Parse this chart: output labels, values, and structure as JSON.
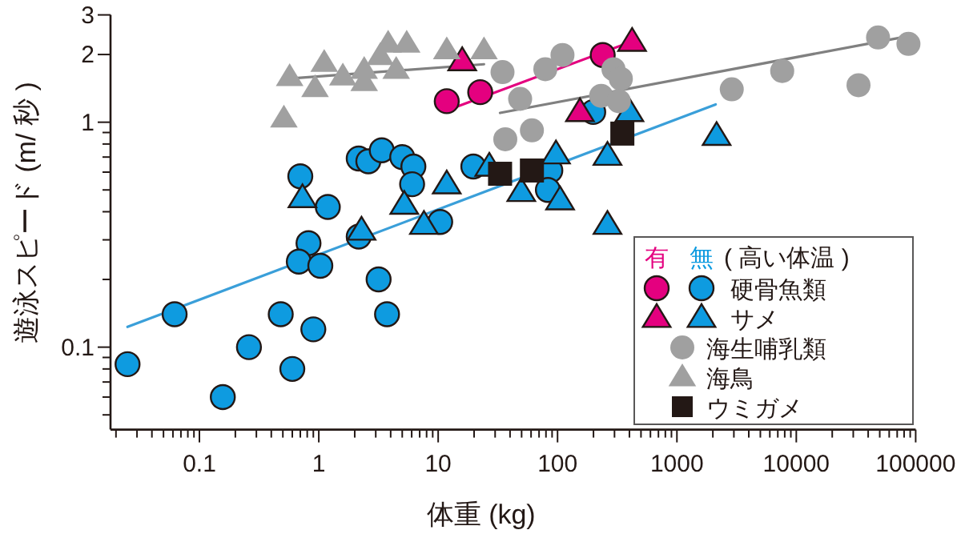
{
  "chart_data": {
    "type": "scatter",
    "xlabel": "体重 (kg)",
    "ylabel": "遊泳スピード (m/ 秒 )",
    "log": "xy",
    "legend": "bottom right",
    "legend_title": "( 高い体温 )",
    "annotations": [
      "有",
      "無"
    ],
    "xlim": [
      0.018,
      100000
    ],
    "ylim": [
      0.043,
      3
    ],
    "xticks": [
      {
        "value": 0.02,
        "label": null
      },
      {
        "value": 0.03,
        "label": null
      },
      {
        "value": 0.04,
        "label": null
      },
      {
        "value": 0.05,
        "label": null
      },
      {
        "value": 0.06,
        "label": null
      },
      {
        "value": 0.07,
        "label": null
      },
      {
        "value": 0.08,
        "label": null
      },
      {
        "value": 0.09,
        "label": null
      },
      0.1,
      {
        "value": 0.2,
        "label": null
      },
      {
        "value": 0.3,
        "label": null
      },
      {
        "value": 0.4,
        "label": null
      },
      {
        "value": 0.5,
        "label": null
      },
      {
        "value": 0.6,
        "label": null
      },
      {
        "value": 0.7,
        "label": null
      },
      {
        "value": 0.8,
        "label": null
      },
      {
        "value": 0.9,
        "label": null
      },
      1,
      {
        "value": 2,
        "label": null
      },
      {
        "value": 3,
        "label": null
      },
      {
        "value": 4,
        "label": null
      },
      {
        "value": 5,
        "label": null
      },
      {
        "value": 6,
        "label": null
      },
      {
        "value": 7,
        "label": null
      },
      {
        "value": 8,
        "label": null
      },
      {
        "value": 9,
        "label": null
      },
      10,
      {
        "value": 20,
        "label": null
      },
      {
        "value": 30,
        "label": null
      },
      {
        "value": 40,
        "label": null
      },
      {
        "value": 50,
        "label": null
      },
      {
        "value": 60,
        "label": null
      },
      {
        "value": 70,
        "label": null
      },
      {
        "value": 80,
        "label": null
      },
      {
        "value": 90,
        "label": null
      },
      100,
      {
        "value": 200,
        "label": null
      },
      {
        "value": 300,
        "label": null
      },
      {
        "value": 400,
        "label": null
      },
      {
        "value": 500,
        "label": null
      },
      {
        "value": 600,
        "label": null
      },
      {
        "value": 700,
        "label": null
      },
      {
        "value": 800,
        "label": null
      },
      {
        "value": 900,
        "label": null
      },
      1000,
      {
        "value": 2000,
        "label": null
      },
      {
        "value": 3000,
        "label": null
      },
      {
        "value": 4000,
        "label": null
      },
      {
        "value": 5000,
        "label": null
      },
      {
        "value": 6000,
        "label": null
      },
      {
        "value": 7000,
        "label": null
      },
      {
        "value": 8000,
        "label": null
      },
      {
        "value": 9000,
        "label": null
      },
      10000,
      {
        "value": 20000,
        "label": null
      },
      {
        "value": 30000,
        "label": null
      },
      {
        "value": 40000,
        "label": null
      },
      {
        "value": 50000,
        "label": null
      },
      {
        "value": 60000,
        "label": null
      },
      {
        "value": 70000,
        "label": null
      },
      {
        "value": 80000,
        "label": null
      },
      {
        "value": 90000,
        "label": null
      },
      100000
    ],
    "yticks": [
      {
        "value": 0.05,
        "label": null
      },
      {
        "value": 0.06,
        "label": null
      },
      {
        "value": 0.07,
        "label": null
      },
      {
        "value": 0.08,
        "label": null
      },
      {
        "value": 0.09,
        "label": null
      },
      0.1,
      {
        "value": 0.2,
        "label": null
      },
      {
        "value": 0.3,
        "label": null
      },
      {
        "value": 0.4,
        "label": null
      },
      {
        "value": 0.5,
        "label": null
      },
      {
        "value": 0.6,
        "label": null
      },
      {
        "value": 0.7,
        "label": null
      },
      {
        "value": 0.8,
        "label": null
      },
      {
        "value": 0.9,
        "label": null
      },
      1,
      2,
      3
    ],
    "series": [
      {
        "type": "line",
        "color": "#3a9fd9",
        "x": [
          0.025,
          2110
        ],
        "values": [
          0.123,
          1.2
        ]
      },
      {
        "type": "line",
        "color": "#e4007f",
        "x": [
          12.4,
          453
        ],
        "values": [
          1.14,
          2.32
        ]
      },
      {
        "type": "line",
        "color": "#808080",
        "x": [
          33,
          85500
        ],
        "values": [
          1.1,
          2.41
        ]
      },
      {
        "type": "line",
        "color": "#808080",
        "x": [
          0.54,
          24.2
        ],
        "values": [
          1.56,
          1.81
        ]
      },
      {
        "marker": "circle",
        "color": "#e4007f",
        "x": [
          11.8,
          22.5,
          239
        ],
        "values": [
          1.24,
          1.36,
          1.99
        ]
      },
      {
        "name": "硬骨魚類",
        "marker": "circle",
        "color": "#0e9be0",
        "x": [
          0.7,
          1.19,
          2.16,
          2.6,
          3.37,
          5.0,
          6.2,
          6.05,
          10.4,
          2.16,
          0.82,
          0.68,
          1.03,
          19.7,
          0.025,
          0.062,
          0.157,
          0.26,
          0.48,
          0.6,
          0.9,
          3.17,
          3.73,
          199,
          87,
          83
        ],
        "values": [
          0.575,
          0.42,
          0.69,
          0.67,
          0.75,
          0.7,
          0.635,
          0.53,
          0.36,
          0.31,
          0.29,
          0.24,
          0.23,
          0.635,
          0.084,
          0.14,
          0.06,
          0.1,
          0.14,
          0.08,
          0.12,
          0.2,
          0.14,
          1.11,
          0.61,
          0.5
        ]
      },
      {
        "marker": "triangle",
        "color": "#e4007f",
        "x": [
          15.9,
          421,
          154
        ],
        "values": [
          1.87,
          2.28,
          1.11
        ]
      },
      {
        "name": "サメ",
        "marker": "triangle",
        "color": "#0e9be0",
        "x": [
          0.73,
          11.8,
          5.2,
          2.28,
          7.6,
          26.8,
          49.7,
          97,
          105,
          262,
          400,
          2150,
          262
        ],
        "values": [
          0.46,
          0.53,
          0.43,
          0.33,
          0.35,
          0.635,
          0.49,
          0.72,
          0.45,
          0.71,
          1.11,
          0.87,
          0.35
        ]
      },
      {
        "name": "海生哺乳類",
        "marker": "circle",
        "color": "#a0a0a0",
        "x": [
          34.6,
          79,
          110,
          294,
          339,
          48.6,
          232,
          326,
          36.5,
          61,
          2880,
          7620,
          33200,
          48400,
          87000
        ],
        "values": [
          1.67,
          1.72,
          1.99,
          1.72,
          1.56,
          1.27,
          1.31,
          1.24,
          0.84,
          0.92,
          1.4,
          1.69,
          1.46,
          2.38,
          2.23
        ]
      },
      {
        "name": "海鳥",
        "marker": "triangle",
        "color": "#a0a0a0",
        "x": [
          0.57,
          1.11,
          1.59,
          0.93,
          2.4,
          2.4,
          3.81,
          5.45,
          3.27,
          4.45,
          11.8,
          24.2,
          0.51
        ],
        "values": [
          1.59,
          1.84,
          1.6,
          1.42,
          1.51,
          1.71,
          2.24,
          2.24,
          1.97,
          1.71,
          2.09,
          2.09,
          1.04
        ]
      },
      {
        "name": "ウミガメ",
        "marker": "square",
        "color": "#231815",
        "x": [
          349,
          61,
          33
        ],
        "values": [
          0.89,
          0.61,
          0.59
        ]
      }
    ]
  }
}
